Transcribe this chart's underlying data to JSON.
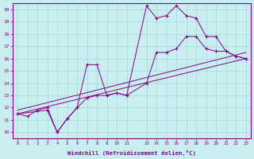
{
  "xlabel": "Windchill (Refroidissement éolien,°C)",
  "bg_color": "#c8eef0",
  "grid_color": "#a8d8dc",
  "line_color": "#880088",
  "xlim": [
    -0.5,
    23.5
  ],
  "ylim": [
    9.5,
    20.5
  ],
  "xticks": [
    0,
    1,
    2,
    3,
    4,
    5,
    6,
    7,
    8,
    9,
    10,
    11,
    13,
    14,
    15,
    16,
    17,
    18,
    19,
    20,
    21,
    22,
    23
  ],
  "yticks": [
    10,
    11,
    12,
    13,
    14,
    15,
    16,
    17,
    18,
    19,
    20
  ],
  "series": [
    {
      "x": [
        0,
        1,
        2,
        3,
        4,
        5,
        6,
        7,
        8,
        9,
        10,
        11,
        13,
        14,
        15,
        16,
        17,
        18,
        19,
        20,
        21,
        22,
        23
      ],
      "y": [
        11.5,
        11.3,
        11.8,
        12.0,
        10.0,
        11.1,
        12.0,
        12.8,
        13.0,
        13.0,
        13.2,
        13.0,
        20.3,
        19.3,
        19.5,
        20.3,
        19.5,
        19.3,
        17.8,
        17.8,
        16.6,
        16.2,
        16.0
      ],
      "marker": true
    },
    {
      "x": [
        0,
        3,
        4,
        5,
        6,
        7,
        8,
        9,
        10,
        11,
        13,
        14,
        15,
        16,
        17,
        18,
        19,
        20,
        21,
        22,
        23
      ],
      "y": [
        11.5,
        11.8,
        10.0,
        11.1,
        12.0,
        15.5,
        15.5,
        13.0,
        13.2,
        13.0,
        14.0,
        16.5,
        16.5,
        16.8,
        17.8,
        17.8,
        16.8,
        16.6,
        16.6,
        16.2,
        16.0
      ],
      "marker": true
    },
    {
      "x": [
        0,
        23
      ],
      "y": [
        11.5,
        16.0
      ],
      "marker": false
    },
    {
      "x": [
        0,
        23
      ],
      "y": [
        11.8,
        16.5
      ],
      "marker": false
    }
  ]
}
